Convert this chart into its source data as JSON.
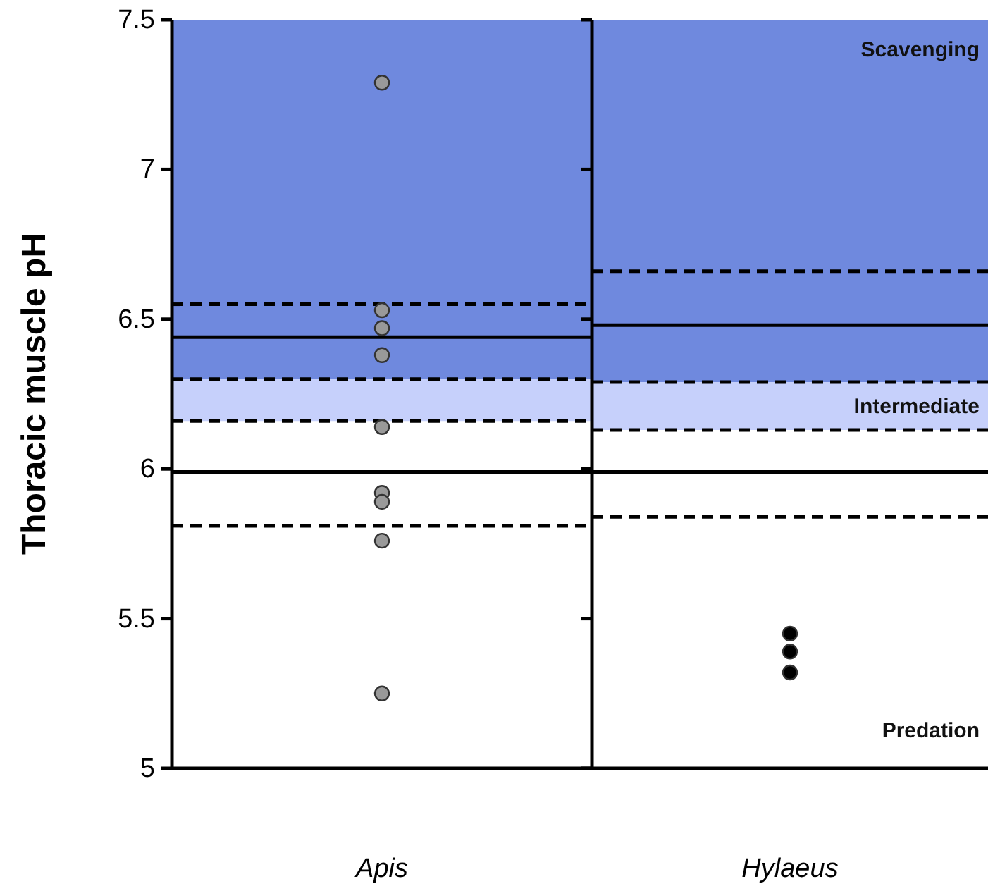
{
  "chart_data": [
    {
      "type": "scatter",
      "ylabel": "Thoracic muscle pH",
      "categories": [
        "Apis"
      ],
      "ylim": [
        5,
        7.5
      ],
      "yticks": [
        5,
        5.5,
        6,
        6.5,
        7,
        7.5
      ],
      "marker": "circle",
      "series": [
        {
          "color": "#999999",
          "x": [
            "Apis",
            "Apis",
            "Apis",
            "Apis",
            "Apis",
            "Apis",
            "Apis",
            "Apis",
            "Apis"
          ],
          "values": [
            7.29,
            6.53,
            6.47,
            6.38,
            6.14,
            5.92,
            5.89,
            5.76,
            5.25
          ]
        }
      ],
      "bands": [
        {
          "axis": "y",
          "from": 6.3,
          "to": 7.5,
          "label": null,
          "color": "#6f89de"
        },
        {
          "axis": "y",
          "from": 6.16,
          "to": 6.3,
          "label": null,
          "color": "#c6d0fb"
        }
      ],
      "ref_lines": [
        {
          "axis": "y",
          "value": 6.55,
          "label": null,
          "color": "#000000",
          "line_style": "dashed"
        },
        {
          "axis": "y",
          "value": 6.44,
          "label": null,
          "color": "#000000",
          "line_style": "solid"
        },
        {
          "axis": "y",
          "value": 6.3,
          "label": null,
          "color": "#000000",
          "line_style": "dashed"
        },
        {
          "axis": "y",
          "value": 6.16,
          "label": null,
          "color": "#000000",
          "line_style": "dashed"
        },
        {
          "axis": "y",
          "value": 5.99,
          "label": null,
          "color": "#000000",
          "line_style": "solid"
        },
        {
          "axis": "y",
          "value": 5.81,
          "label": null,
          "color": "#000000",
          "line_style": "dashed"
        }
      ]
    },
    {
      "type": "scatter",
      "categories": [
        "Hylaeus"
      ],
      "ylim": [
        5,
        7.5
      ],
      "yticks": [
        {
          "value": 5,
          "label": null
        },
        {
          "value": 5.5,
          "label": null
        },
        {
          "value": 6,
          "label": null
        },
        {
          "value": 6.5,
          "label": null
        },
        {
          "value": 7,
          "label": null
        },
        {
          "value": 7.5,
          "label": null
        }
      ],
      "tick_labels": "x",
      "marker": "circle",
      "series": [
        {
          "color": "#000000",
          "x": [
            "Hylaeus",
            "Hylaeus",
            "Hylaeus"
          ],
          "values": [
            5.45,
            5.39,
            5.32
          ]
        }
      ],
      "bands": [
        {
          "axis": "y",
          "from": 6.29,
          "to": 7.5,
          "label": "Scavenging",
          "color": "#6f89de"
        },
        {
          "axis": "y",
          "from": 6.13,
          "to": 6.29,
          "label": "Intermediate",
          "color": "#c6d0fb"
        }
      ],
      "ref_lines": [
        {
          "axis": "y",
          "value": 6.66,
          "label": null,
          "color": "#000000",
          "line_style": "dashed"
        },
        {
          "axis": "y",
          "value": 6.48,
          "label": null,
          "color": "#000000",
          "line_style": "solid"
        },
        {
          "axis": "y",
          "value": 6.29,
          "label": null,
          "color": "#000000",
          "line_style": "dashed"
        },
        {
          "axis": "y",
          "value": 6.13,
          "label": null,
          "color": "#000000",
          "line_style": "dashed"
        },
        {
          "axis": "y",
          "value": 5.99,
          "label": null,
          "color": "#000000",
          "line_style": "solid"
        },
        {
          "axis": "y",
          "value": 5.84,
          "label": null,
          "color": "#000000",
          "line_style": "dashed"
        }
      ],
      "annotations": [
        "Predation"
      ]
    }
  ]
}
